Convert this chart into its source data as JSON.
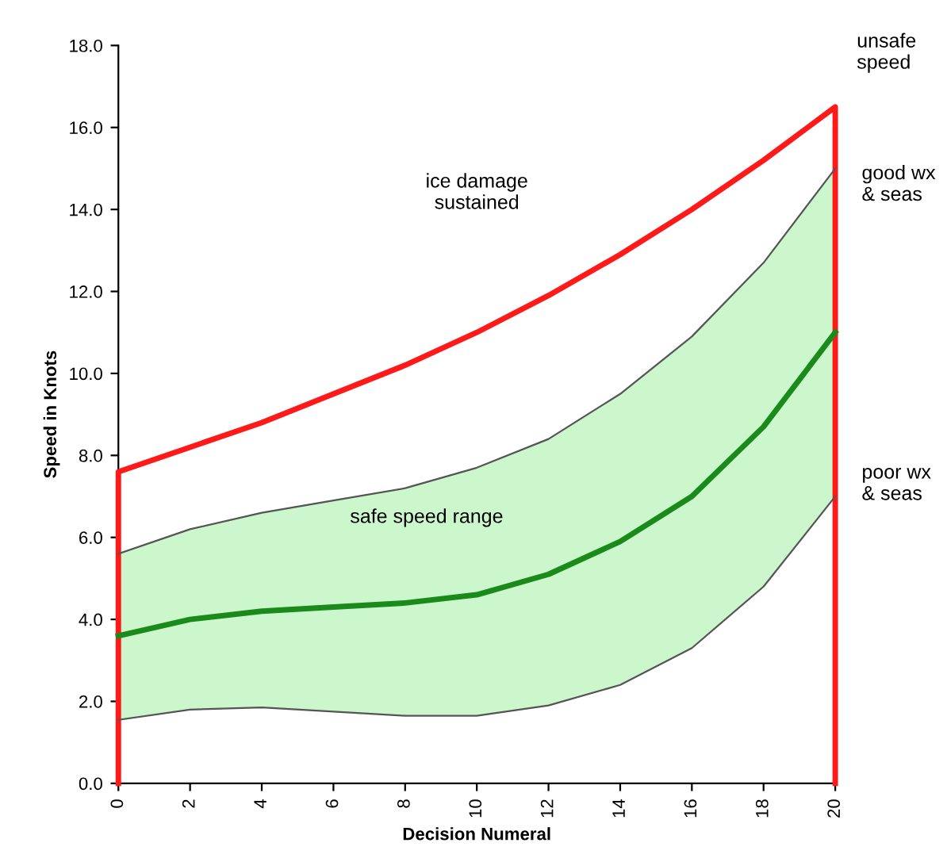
{
  "chart_data": {
    "type": "line",
    "xlabel": "Decision Numeral",
    "ylabel": "Speed in Knots",
    "xlim": [
      0,
      20
    ],
    "ylim": [
      0,
      18
    ],
    "xticks": [
      0,
      2,
      4,
      6,
      8,
      10,
      12,
      14,
      16,
      18,
      20
    ],
    "yticks": [
      {
        "value": 0,
        "label": "0.0"
      },
      {
        "value": 2,
        "label": "2.0"
      },
      {
        "value": 4,
        "label": "4.0"
      },
      {
        "value": 6,
        "label": "6.0"
      },
      {
        "value": 8,
        "label": "8.0"
      },
      {
        "value": 10,
        "label": "10.0"
      },
      {
        "value": 12,
        "label": "12.0"
      },
      {
        "value": 14,
        "label": "14.0"
      },
      {
        "value": 16,
        "label": "16.0"
      },
      {
        "value": 18,
        "label": "18.0"
      }
    ],
    "grid": false,
    "legend": false,
    "marker": "none",
    "line_style": "solid",
    "series": [
      {
        "color": "#ff1a1a",
        "x": [
          0,
          0,
          2,
          4,
          6,
          8,
          10,
          12,
          14,
          16,
          18,
          20,
          20
        ],
        "values": [
          0,
          7.6,
          8.2,
          8.8,
          9.5,
          10.2,
          11.0,
          11.9,
          12.9,
          14.0,
          15.2,
          16.5,
          0
        ]
      },
      {
        "color": "#1a8a1a",
        "x": [
          0,
          2,
          4,
          6,
          8,
          10,
          12,
          14,
          16,
          18,
          20
        ],
        "values": [
          3.6,
          4.0,
          4.2,
          4.3,
          4.4,
          4.6,
          5.1,
          5.9,
          7.0,
          8.7,
          11.0
        ],
        "lower": [
          1.55,
          1.8,
          1.85,
          1.75,
          1.65,
          1.65,
          1.9,
          2.4,
          3.3,
          4.8,
          7.0
        ],
        "upper": [
          5.6,
          6.2,
          6.6,
          6.9,
          7.2,
          7.7,
          8.4,
          9.5,
          10.9,
          12.7,
          15.0
        ]
      },
      {
        "color": "#555555",
        "x": [
          0,
          2,
          4,
          6,
          8,
          10,
          12,
          14,
          16,
          18,
          20
        ],
        "values": [
          5.6,
          6.2,
          6.6,
          6.9,
          7.2,
          7.7,
          8.4,
          9.5,
          10.9,
          12.7,
          15.0
        ]
      },
      {
        "color": "#555555",
        "x": [
          0,
          2,
          4,
          6,
          8,
          10,
          12,
          14,
          16,
          18,
          20
        ],
        "values": [
          1.55,
          1.8,
          1.85,
          1.75,
          1.65,
          1.65,
          1.9,
          2.4,
          3.3,
          4.8,
          7.0
        ]
      }
    ],
    "annotations": [
      "ice damage\nsustained",
      "safe speed range",
      "unsafe\nspeed",
      {
        "text": "good wx\n& seas",
        "x": 20,
        "y": 14.6
      },
      {
        "text": "poor wx\n& seas",
        "x": 20,
        "y": 7.3
      }
    ]
  }
}
